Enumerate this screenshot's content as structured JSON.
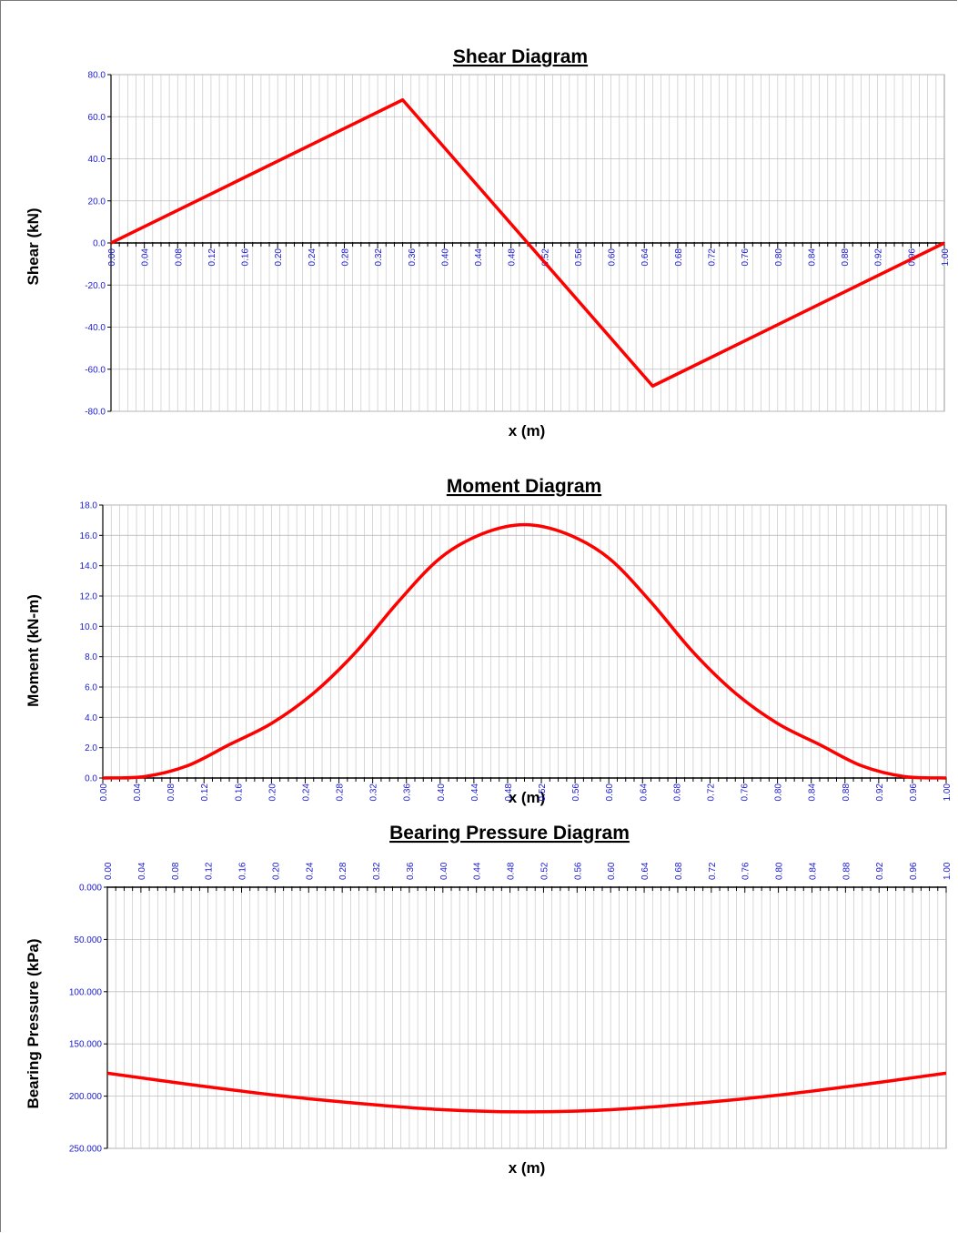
{
  "colors": {
    "line": "#ff0000",
    "tick_text": "#1a1ad0",
    "grid": "#c8c8c8",
    "axis": "#000000"
  },
  "chart_data": [
    {
      "type": "line",
      "title": "Shear Diagram",
      "xlabel": "x (m)",
      "ylabel": "Shear (kN)",
      "xlim": [
        0,
        1
      ],
      "ylim": [
        -80,
        80
      ],
      "grid": true,
      "y_ticks": [
        "80.0",
        "60.0",
        "40.0",
        "20.0",
        "0.0",
        "-20.0",
        "-40.0",
        "-60.0",
        "-80.0"
      ],
      "x_ticks": [
        "0.00",
        "0.04",
        "0.08",
        "0.12",
        "0.16",
        "0.20",
        "0.24",
        "0.28",
        "0.32",
        "0.36",
        "0.40",
        "0.44",
        "0.48",
        "0.52",
        "0.56",
        "0.60",
        "0.64",
        "0.68",
        "0.72",
        "0.76",
        "0.80",
        "0.84",
        "0.88",
        "0.92",
        "0.96",
        "1.00"
      ],
      "series": [
        {
          "x": [
            0.0,
            0.35,
            0.5,
            0.65,
            1.0
          ],
          "y": [
            0.0,
            68.0,
            0.0,
            -68.0,
            0.0
          ]
        }
      ]
    },
    {
      "type": "line",
      "title": "Moment Diagram",
      "xlabel": "x (m)",
      "ylabel": "Moment (kN-m)",
      "xlim": [
        0,
        1
      ],
      "ylim": [
        0,
        18
      ],
      "grid": true,
      "y_ticks": [
        "18.0",
        "16.0",
        "14.0",
        "12.0",
        "10.0",
        "8.0",
        "6.0",
        "4.0",
        "2.0",
        "0.0"
      ],
      "x_ticks": [
        "0.00",
        "0.04",
        "0.08",
        "0.12",
        "0.16",
        "0.20",
        "0.24",
        "0.28",
        "0.32",
        "0.36",
        "0.40",
        "0.44",
        "0.48",
        "0.52",
        "0.56",
        "0.60",
        "0.64",
        "0.68",
        "0.72",
        "0.76",
        "0.80",
        "0.84",
        "0.88",
        "0.92",
        "0.96",
        "1.00"
      ],
      "series": [
        {
          "x": [
            0.0,
            0.05,
            0.1,
            0.15,
            0.2,
            0.25,
            0.3,
            0.35,
            0.4,
            0.45,
            0.5,
            0.55,
            0.6,
            0.65,
            0.7,
            0.75,
            0.8,
            0.85,
            0.9,
            0.95,
            1.0
          ],
          "y": [
            0.0,
            0.1,
            0.8,
            2.2,
            3.6,
            5.6,
            8.3,
            11.6,
            14.5,
            16.1,
            16.7,
            16.1,
            14.5,
            11.6,
            8.3,
            5.6,
            3.6,
            2.2,
            0.8,
            0.1,
            0.0
          ]
        }
      ]
    },
    {
      "type": "line",
      "title": "Bearing Pressure Diagram",
      "xlabel": "x (m)",
      "ylabel": "Bearing Pressure (kPa)",
      "xlim": [
        0,
        1
      ],
      "ylim": [
        0,
        250
      ],
      "y_inverted": true,
      "x_axis_position": "top",
      "grid": true,
      "y_ticks": [
        "0.000",
        "50.000",
        "100.000",
        "150.000",
        "200.000",
        "250.000"
      ],
      "x_ticks": [
        "0.00",
        "0.04",
        "0.08",
        "0.12",
        "0.16",
        "0.20",
        "0.24",
        "0.28",
        "0.32",
        "0.36",
        "0.40",
        "0.44",
        "0.48",
        "0.52",
        "0.56",
        "0.60",
        "0.64",
        "0.68",
        "0.72",
        "0.76",
        "0.80",
        "0.84",
        "0.88",
        "0.92",
        "0.96",
        "1.00"
      ],
      "series": [
        {
          "x": [
            0.0,
            0.1,
            0.2,
            0.3,
            0.4,
            0.5,
            0.6,
            0.7,
            0.8,
            0.9,
            1.0
          ],
          "y": [
            178,
            189,
            199,
            207,
            213,
            215,
            213,
            207,
            199,
            189,
            178
          ]
        }
      ]
    }
  ]
}
